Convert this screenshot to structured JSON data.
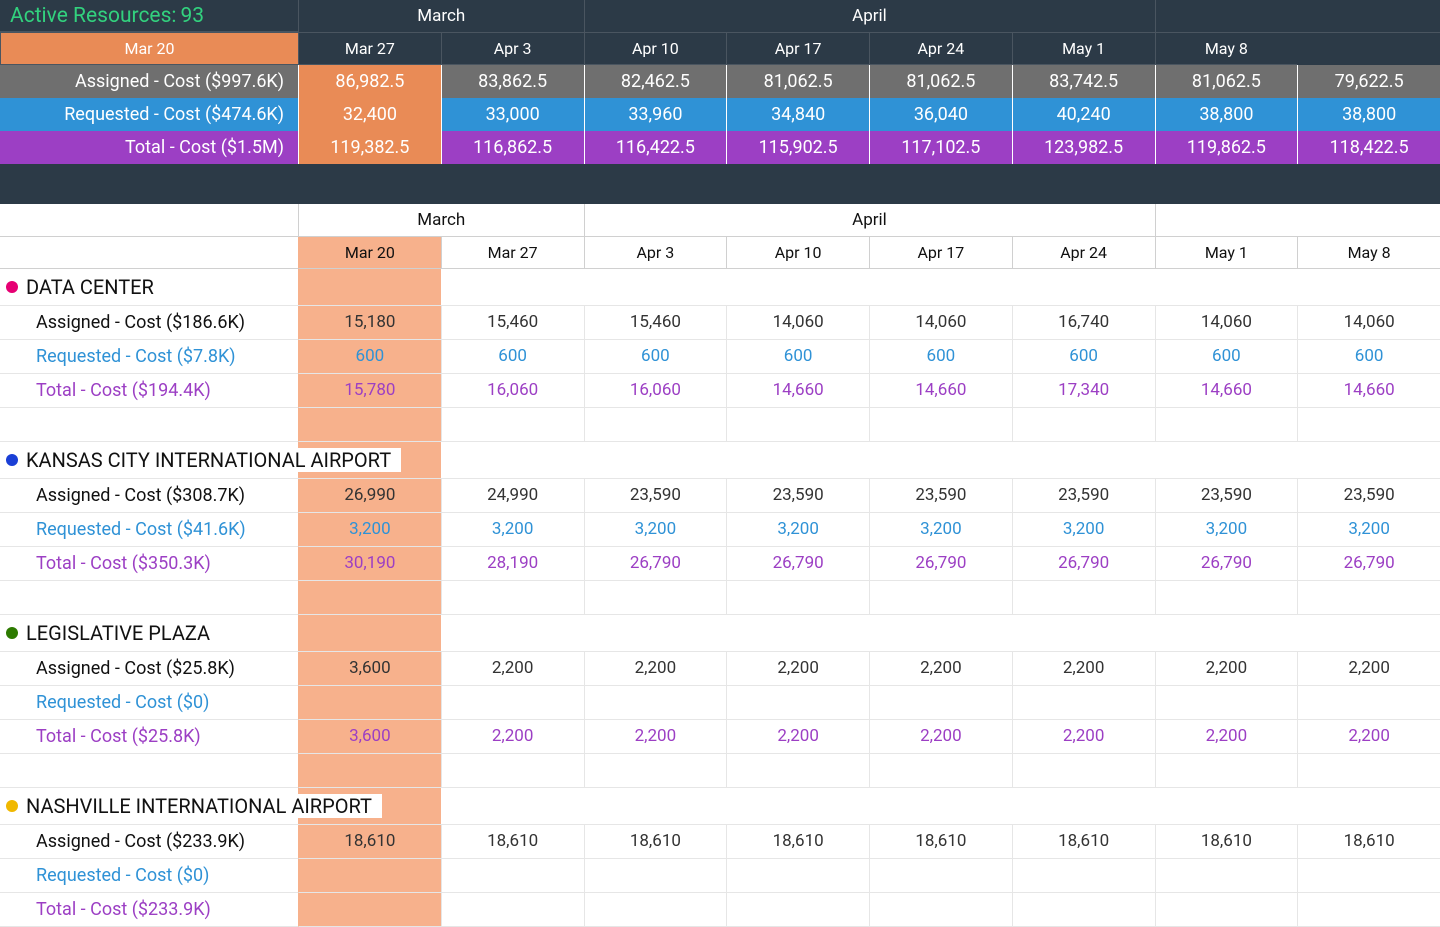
{
  "title_prefix": "Active Resources: ",
  "title_count": "93",
  "title_color": "#32d17e",
  "colors": {
    "header_bg": "#2c3a47",
    "current_col_top": "#e98b56",
    "current_col_detail": "#f7b18c",
    "assigned_bg": "#6f6f6f",
    "requested_bg": "#2f92d6",
    "total_bg": "#9c3fc4",
    "assigned_text": "#111111",
    "requested_text": "#2f92d6",
    "total_text": "#9c3fc4"
  },
  "months": [
    {
      "label": "March",
      "span": 2
    },
    {
      "label": "April",
      "span": 4
    },
    {
      "label": "",
      "span": 2
    }
  ],
  "weeks": [
    "Mar 20",
    "Mar 27",
    "Apr 3",
    "Apr 10",
    "Apr 17",
    "Apr 24",
    "May 1",
    "May 8"
  ],
  "current_col_index": 0,
  "summary": {
    "assigned": {
      "label": "Assigned - Cost ($997.6K)",
      "values": [
        "86,982.5",
        "83,862.5",
        "82,462.5",
        "81,062.5",
        "81,062.5",
        "83,742.5",
        "81,062.5",
        "79,622.5"
      ]
    },
    "requested": {
      "label": "Requested - Cost ($474.6K)",
      "values": [
        "32,400",
        "33,000",
        "33,960",
        "34,840",
        "36,040",
        "40,240",
        "38,800",
        "38,800"
      ]
    },
    "total": {
      "label": "Total - Cost ($1.5M)",
      "values": [
        "119,382.5",
        "116,862.5",
        "116,422.5",
        "115,902.5",
        "117,102.5",
        "123,982.5",
        "119,862.5",
        "118,422.5"
      ]
    }
  },
  "groups": [
    {
      "name": "DATA CENTER",
      "dot_color": "#e60073",
      "assigned": {
        "label": "Assigned - Cost ($186.6K)",
        "values": [
          "15,180",
          "15,460",
          "15,460",
          "14,060",
          "14,060",
          "16,740",
          "14,060",
          "14,060"
        ]
      },
      "requested": {
        "label": "Requested - Cost ($7.8K)",
        "values": [
          "600",
          "600",
          "600",
          "600",
          "600",
          "600",
          "600",
          "600"
        ]
      },
      "total": {
        "label": "Total - Cost ($194.4K)",
        "values": [
          "15,780",
          "16,060",
          "16,060",
          "14,660",
          "14,660",
          "17,340",
          "14,660",
          "14,660"
        ]
      }
    },
    {
      "name": "KANSAS CITY INTERNATIONAL AIRPORT",
      "dot_color": "#1a3fd6",
      "assigned": {
        "label": "Assigned - Cost ($308.7K)",
        "values": [
          "26,990",
          "24,990",
          "23,590",
          "23,590",
          "23,590",
          "23,590",
          "23,590",
          "23,590"
        ]
      },
      "requested": {
        "label": "Requested - Cost ($41.6K)",
        "values": [
          "3,200",
          "3,200",
          "3,200",
          "3,200",
          "3,200",
          "3,200",
          "3,200",
          "3,200"
        ]
      },
      "total": {
        "label": "Total - Cost ($350.3K)",
        "values": [
          "30,190",
          "28,190",
          "26,790",
          "26,790",
          "26,790",
          "26,790",
          "26,790",
          "26,790"
        ]
      }
    },
    {
      "name": "LEGISLATIVE PLAZA",
      "dot_color": "#2d7a00",
      "assigned": {
        "label": "Assigned - Cost ($25.8K)",
        "values": [
          "3,600",
          "2,200",
          "2,200",
          "2,200",
          "2,200",
          "2,200",
          "2,200",
          "2,200"
        ]
      },
      "requested": {
        "label": "Requested - Cost ($0)",
        "values": [
          "",
          "",
          "",
          "",
          "",
          "",
          "",
          ""
        ]
      },
      "total": {
        "label": "Total - Cost ($25.8K)",
        "values": [
          "3,600",
          "2,200",
          "2,200",
          "2,200",
          "2,200",
          "2,200",
          "2,200",
          "2,200"
        ]
      }
    },
    {
      "name": "NASHVILLE INTERNATIONAL AIRPORT",
      "dot_color": "#f0b800",
      "assigned": {
        "label": "Assigned - Cost ($233.9K)",
        "values": [
          "18,610",
          "18,610",
          "18,610",
          "18,610",
          "18,610",
          "18,610",
          "18,610",
          "18,610"
        ]
      },
      "requested": {
        "label": "Requested - Cost ($0)",
        "values": [
          "",
          "",
          "",
          "",
          "",
          "",
          "",
          ""
        ]
      },
      "total": {
        "label": "Total - Cost ($233.9K)",
        "values": [
          "",
          "",
          "",
          "",
          "",
          "",
          "",
          ""
        ]
      }
    }
  ]
}
